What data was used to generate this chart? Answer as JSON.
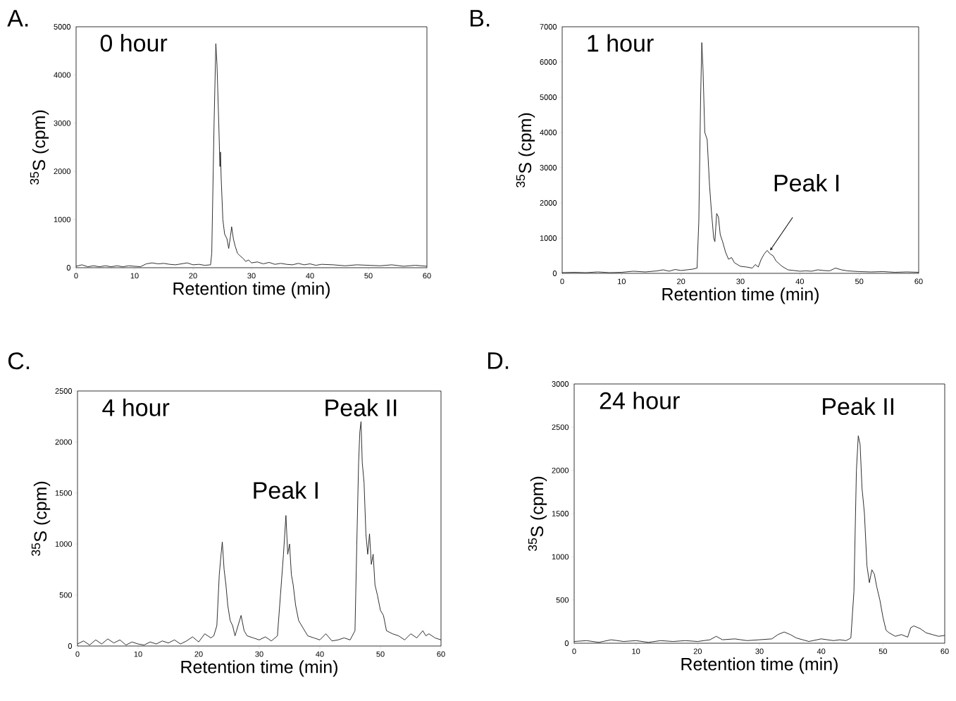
{
  "chart_data": [
    {
      "type": "line",
      "title": "0 hour",
      "xlabel": "Retention time (min)",
      "ylabel": "$^{35}$S (cpm)",
      "color": "#1a1a1a",
      "xlim": [
        0,
        60
      ],
      "ylim": [
        0,
        5000
      ],
      "xticks": [
        0,
        10,
        20,
        30,
        40,
        50,
        60
      ],
      "yticks": [
        0,
        1000,
        2000,
        3000,
        4000,
        5000
      ],
      "annotations": [
        "A."
      ],
      "x": [
        0,
        1,
        2,
        3,
        4,
        5,
        6,
        7,
        8,
        9,
        10,
        11,
        12,
        13,
        14,
        15,
        16,
        17,
        18,
        19,
        20,
        21,
        22,
        23,
        23.2,
        23.6,
        23.9,
        24.1,
        24.4,
        24.6,
        24.7,
        24.8,
        25.1,
        25.4,
        25.8,
        26.1,
        26.4,
        26.6,
        26.9,
        27.2,
        27.6,
        28,
        28.5,
        29,
        29.5,
        30,
        31,
        32,
        33,
        34,
        35,
        36,
        37,
        38,
        39,
        40,
        41,
        42,
        44,
        46,
        48,
        50,
        52,
        54,
        56,
        58,
        60
      ],
      "values": [
        30,
        60,
        20,
        40,
        20,
        40,
        20,
        40,
        20,
        40,
        30,
        20,
        80,
        100,
        80,
        90,
        70,
        60,
        80,
        100,
        60,
        70,
        50,
        60,
        300,
        3000,
        4650,
        4200,
        3000,
        2100,
        2400,
        1900,
        1000,
        700,
        600,
        400,
        650,
        850,
        600,
        450,
        300,
        250,
        200,
        130,
        160,
        100,
        120,
        80,
        110,
        70,
        90,
        70,
        60,
        90,
        60,
        80,
        50,
        70,
        60,
        40,
        60,
        50,
        40,
        60,
        30,
        50,
        30
      ]
    },
    {
      "type": "line",
      "title": "1 hour",
      "xlabel": "Retention time (min)",
      "ylabel": "$^{35}$S (cpm)",
      "color": "#1a1a1a",
      "xlim": [
        0,
        60
      ],
      "ylim": [
        0,
        7000
      ],
      "xticks": [
        0,
        10,
        20,
        30,
        40,
        50,
        60
      ],
      "yticks": [
        0,
        1000,
        2000,
        3000,
        4000,
        5000,
        6000,
        7000
      ],
      "annotations": [
        "B.",
        {
          "text": "Peak I",
          "x": 35,
          "y": 650
        }
      ],
      "x": [
        0,
        2,
        4,
        6,
        8,
        10,
        12,
        14,
        16,
        17,
        18,
        19,
        20,
        21,
        22,
        22.7,
        23.0,
        23.3,
        23.5,
        23.7,
        24,
        24.4,
        24.8,
        25.1,
        25.5,
        25.7,
        26.0,
        26.3,
        26.6,
        27,
        27.5,
        28,
        28.5,
        29,
        30,
        31,
        32,
        32.5,
        33,
        33.5,
        34,
        34.5,
        35,
        35.5,
        36,
        37,
        38,
        39,
        40,
        41,
        42,
        43,
        44,
        45,
        46,
        47,
        48,
        50,
        52,
        54,
        56,
        58,
        60
      ],
      "values": [
        20,
        30,
        20,
        40,
        20,
        30,
        60,
        40,
        70,
        100,
        60,
        110,
        80,
        100,
        120,
        150,
        1500,
        5000,
        6550,
        5800,
        4000,
        3800,
        2500,
        1800,
        1000,
        900,
        1700,
        1600,
        1100,
        900,
        600,
        400,
        450,
        300,
        200,
        180,
        150,
        250,
        180,
        400,
        550,
        650,
        550,
        500,
        350,
        200,
        100,
        80,
        60,
        70,
        60,
        100,
        80,
        70,
        150,
        100,
        70,
        50,
        40,
        50,
        30,
        40,
        30
      ]
    },
    {
      "type": "line",
      "title": "4 hour",
      "xlabel": "Retention time (min)",
      "ylabel": "$^{35}$S (cpm)",
      "color": "#1a1a1a",
      "xlim": [
        0,
        60
      ],
      "ylim": [
        0,
        2500
      ],
      "xticks": [
        0,
        10,
        20,
        30,
        40,
        50,
        60
      ],
      "yticks": [
        0,
        500,
        1000,
        1500,
        2000,
        2500
      ],
      "annotations": [
        "C.",
        {
          "text": "Peak I",
          "x": 34.4,
          "y": 1280
        },
        {
          "text": "Peak II",
          "x": 46.8,
          "y": 2200
        }
      ],
      "x": [
        0,
        1,
        2,
        3,
        4,
        5,
        6,
        7,
        8,
        9,
        10,
        11,
        12,
        13,
        14,
        15,
        16,
        17,
        18,
        19,
        20,
        21,
        22,
        22.5,
        23,
        23.4,
        23.7,
        23.9,
        24.2,
        24.5,
        24.8,
        25.2,
        25.6,
        26,
        26.5,
        27,
        27.5,
        28,
        29,
        30,
        31,
        32,
        33,
        33.5,
        34,
        34.4,
        34.7,
        35,
        35.3,
        35.6,
        36,
        36.5,
        37,
        38,
        39,
        40,
        41,
        42,
        43,
        44,
        45,
        45.8,
        46.1,
        46.4,
        46.6,
        46.8,
        47.0,
        47.3,
        47.6,
        47.9,
        48.2,
        48.5,
        48.8,
        49.1,
        49.5,
        50,
        50.5,
        51,
        52,
        53,
        54,
        55,
        56,
        57,
        57.5,
        58,
        59,
        60
      ],
      "values": [
        20,
        50,
        10,
        60,
        20,
        70,
        30,
        60,
        10,
        40,
        20,
        10,
        40,
        20,
        50,
        30,
        60,
        20,
        50,
        90,
        40,
        120,
        80,
        100,
        200,
        700,
        900,
        1020,
        750,
        600,
        400,
        250,
        200,
        100,
        200,
        300,
        150,
        100,
        80,
        60,
        90,
        50,
        100,
        500,
        900,
        1280,
        900,
        1000,
        700,
        600,
        400,
        250,
        200,
        100,
        80,
        60,
        120,
        50,
        60,
        80,
        60,
        150,
        1000,
        1800,
        2100,
        2200,
        1800,
        1600,
        1100,
        900,
        1100,
        800,
        900,
        600,
        500,
        350,
        300,
        150,
        120,
        100,
        60,
        120,
        80,
        150,
        100,
        120,
        80,
        60
      ]
    },
    {
      "type": "line",
      "title": "24 hour",
      "xlabel": "Retention time (min)",
      "ylabel": "$^{35}$S (cpm)",
      "color": "#1a1a1a",
      "xlim": [
        0,
        60
      ],
      "ylim": [
        0,
        3000
      ],
      "xticks": [
        0,
        10,
        20,
        30,
        40,
        50,
        60
      ],
      "yticks": [
        0,
        500,
        1000,
        1500,
        2000,
        2500,
        3000
      ],
      "annotations": [
        "D.",
        {
          "text": "Peak II",
          "x": 46,
          "y": 2400
        }
      ],
      "x": [
        0,
        2,
        4,
        6,
        8,
        10,
        12,
        14,
        16,
        18,
        20,
        22,
        23,
        24,
        26,
        28,
        30,
        32,
        33,
        34,
        35,
        36,
        37,
        38,
        40,
        42,
        43,
        44,
        44.8,
        45.3,
        45.7,
        46.0,
        46.3,
        46.6,
        47,
        47.4,
        47.8,
        48.2,
        48.6,
        49,
        49.5,
        50,
        50.5,
        51,
        52,
        53,
        54,
        54.5,
        55,
        56,
        57,
        58,
        59,
        60
      ],
      "values": [
        20,
        30,
        10,
        40,
        20,
        30,
        10,
        30,
        20,
        30,
        20,
        40,
        80,
        40,
        50,
        30,
        40,
        50,
        100,
        130,
        100,
        60,
        40,
        20,
        50,
        30,
        40,
        30,
        60,
        600,
        2000,
        2400,
        2300,
        1800,
        1500,
        900,
        700,
        850,
        800,
        650,
        500,
        300,
        150,
        120,
        80,
        100,
        70,
        180,
        200,
        170,
        120,
        100,
        80,
        90
      ]
    }
  ]
}
